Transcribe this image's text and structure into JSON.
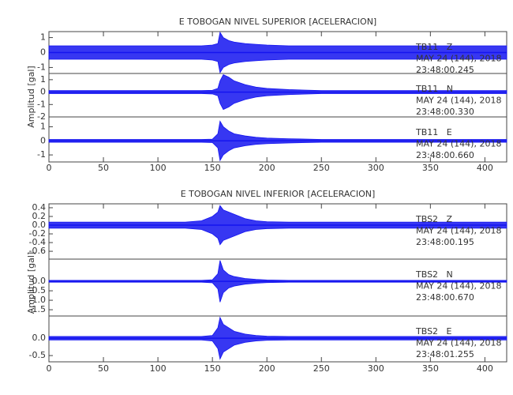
{
  "chart_data": [
    {
      "type": "seismogram",
      "title": "E TOBOGAN NIVEL SUPERIOR [ACELERACION]",
      "ylabel": "Amplitud [gal]",
      "color": "#1414f0",
      "xlim": [
        0,
        420
      ],
      "xticks": [
        0,
        50,
        100,
        150,
        200,
        250,
        300,
        350,
        400
      ],
      "x": [
        0,
        25,
        50,
        75,
        100,
        125,
        140,
        150,
        155,
        157,
        160,
        165,
        170,
        180,
        190,
        200,
        220,
        250,
        300,
        350,
        400,
        420
      ],
      "panels": [
        {
          "station": "TB11   Z",
          "date": "MAY 24 (144), 2018",
          "time": "23:48:00.245",
          "ylim": [
            -1.4,
            1.4
          ],
          "yticks": [
            1,
            0,
            -1
          ],
          "values": [
            0.45,
            0.45,
            0.45,
            0.45,
            0.45,
            0.45,
            0.45,
            0.5,
            0.6,
            1.35,
            1.0,
            0.8,
            0.7,
            0.6,
            0.55,
            0.5,
            0.45,
            0.45,
            0.45,
            0.45,
            0.45,
            0.45
          ]
        },
        {
          "station": "TB11   N",
          "date": "MAY 24 (144), 2018",
          "time": "23:48:00.330",
          "ylim": [
            -2,
            1.5
          ],
          "yticks": [
            1,
            0,
            -1,
            -2
          ],
          "values": [
            0.12,
            0.12,
            0.12,
            0.12,
            0.12,
            0.12,
            0.12,
            0.15,
            0.3,
            0.9,
            1.4,
            1.2,
            0.9,
            0.6,
            0.4,
            0.3,
            0.2,
            0.12,
            0.12,
            0.12,
            0.12,
            0.12
          ]
        },
        {
          "station": "TB11   E",
          "date": "MAY 24 (144), 2018",
          "time": "23:48:00.660",
          "ylim": [
            -1.5,
            1.7
          ],
          "yticks": [
            1,
            0,
            -1
          ],
          "values": [
            0.1,
            0.1,
            0.1,
            0.1,
            0.1,
            0.1,
            0.1,
            0.12,
            0.5,
            1.4,
            1.0,
            0.7,
            0.5,
            0.35,
            0.25,
            0.2,
            0.15,
            0.1,
            0.1,
            0.1,
            0.1,
            0.1
          ]
        }
      ]
    },
    {
      "type": "seismogram",
      "title": "E TOBOGAN NIVEL INFERIOR [ACELERACION]",
      "ylabel": "Amplitud [gal]",
      "color": "#1414f0",
      "xlim": [
        0,
        420
      ],
      "xticks": [
        0,
        50,
        100,
        150,
        200,
        250,
        300,
        350,
        400
      ],
      "x": [
        0,
        25,
        50,
        75,
        100,
        125,
        140,
        150,
        155,
        157,
        160,
        165,
        170,
        180,
        190,
        200,
        220,
        250,
        300,
        350,
        400,
        420
      ],
      "panels": [
        {
          "station": "TBS2   Z",
          "date": "MAY 24 (144), 2018",
          "time": "23:48:00.195",
          "ylim": [
            -0.78,
            0.49
          ],
          "yticks": [
            0.4,
            0.2,
            {
              "value": 0,
              "label": "0.0"
            },
            -0.2,
            -0.4,
            -0.6
          ],
          "values": [
            0.07,
            0.07,
            0.07,
            0.07,
            0.07,
            0.07,
            0.1,
            0.2,
            0.3,
            0.45,
            0.35,
            0.3,
            0.25,
            0.15,
            0.1,
            0.08,
            0.07,
            0.07,
            0.07,
            0.07,
            0.07,
            0.07
          ]
        },
        {
          "station": "TBS2   N",
          "date": "MAY 24 (144), 2018",
          "time": "23:48:00.670",
          "ylim": [
            -1.83,
            1.17
          ],
          "yticks": [
            {
              "value": 0,
              "label": "0.0"
            },
            -0.5,
            {
              "value": -1,
              "label": "-1.0"
            },
            -1.5
          ],
          "values": [
            0.05,
            0.05,
            0.05,
            0.05,
            0.05,
            0.05,
            0.05,
            0.08,
            0.4,
            1.1,
            0.6,
            0.35,
            0.25,
            0.15,
            0.1,
            0.07,
            0.05,
            0.05,
            0.05,
            0.05,
            0.05,
            0.05
          ]
        },
        {
          "station": "TBS2   E",
          "date": "MAY 24 (144), 2018",
          "time": "23:48:01.255",
          "ylim": [
            -0.68,
            0.64
          ],
          "yticks": [
            {
              "value": 0,
              "label": "0.0"
            },
            -0.5
          ],
          "values": [
            0.05,
            0.05,
            0.05,
            0.05,
            0.05,
            0.05,
            0.05,
            0.08,
            0.3,
            0.6,
            0.4,
            0.3,
            0.2,
            0.12,
            0.08,
            0.06,
            0.05,
            0.05,
            0.05,
            0.05,
            0.05,
            0.05
          ]
        }
      ]
    }
  ]
}
